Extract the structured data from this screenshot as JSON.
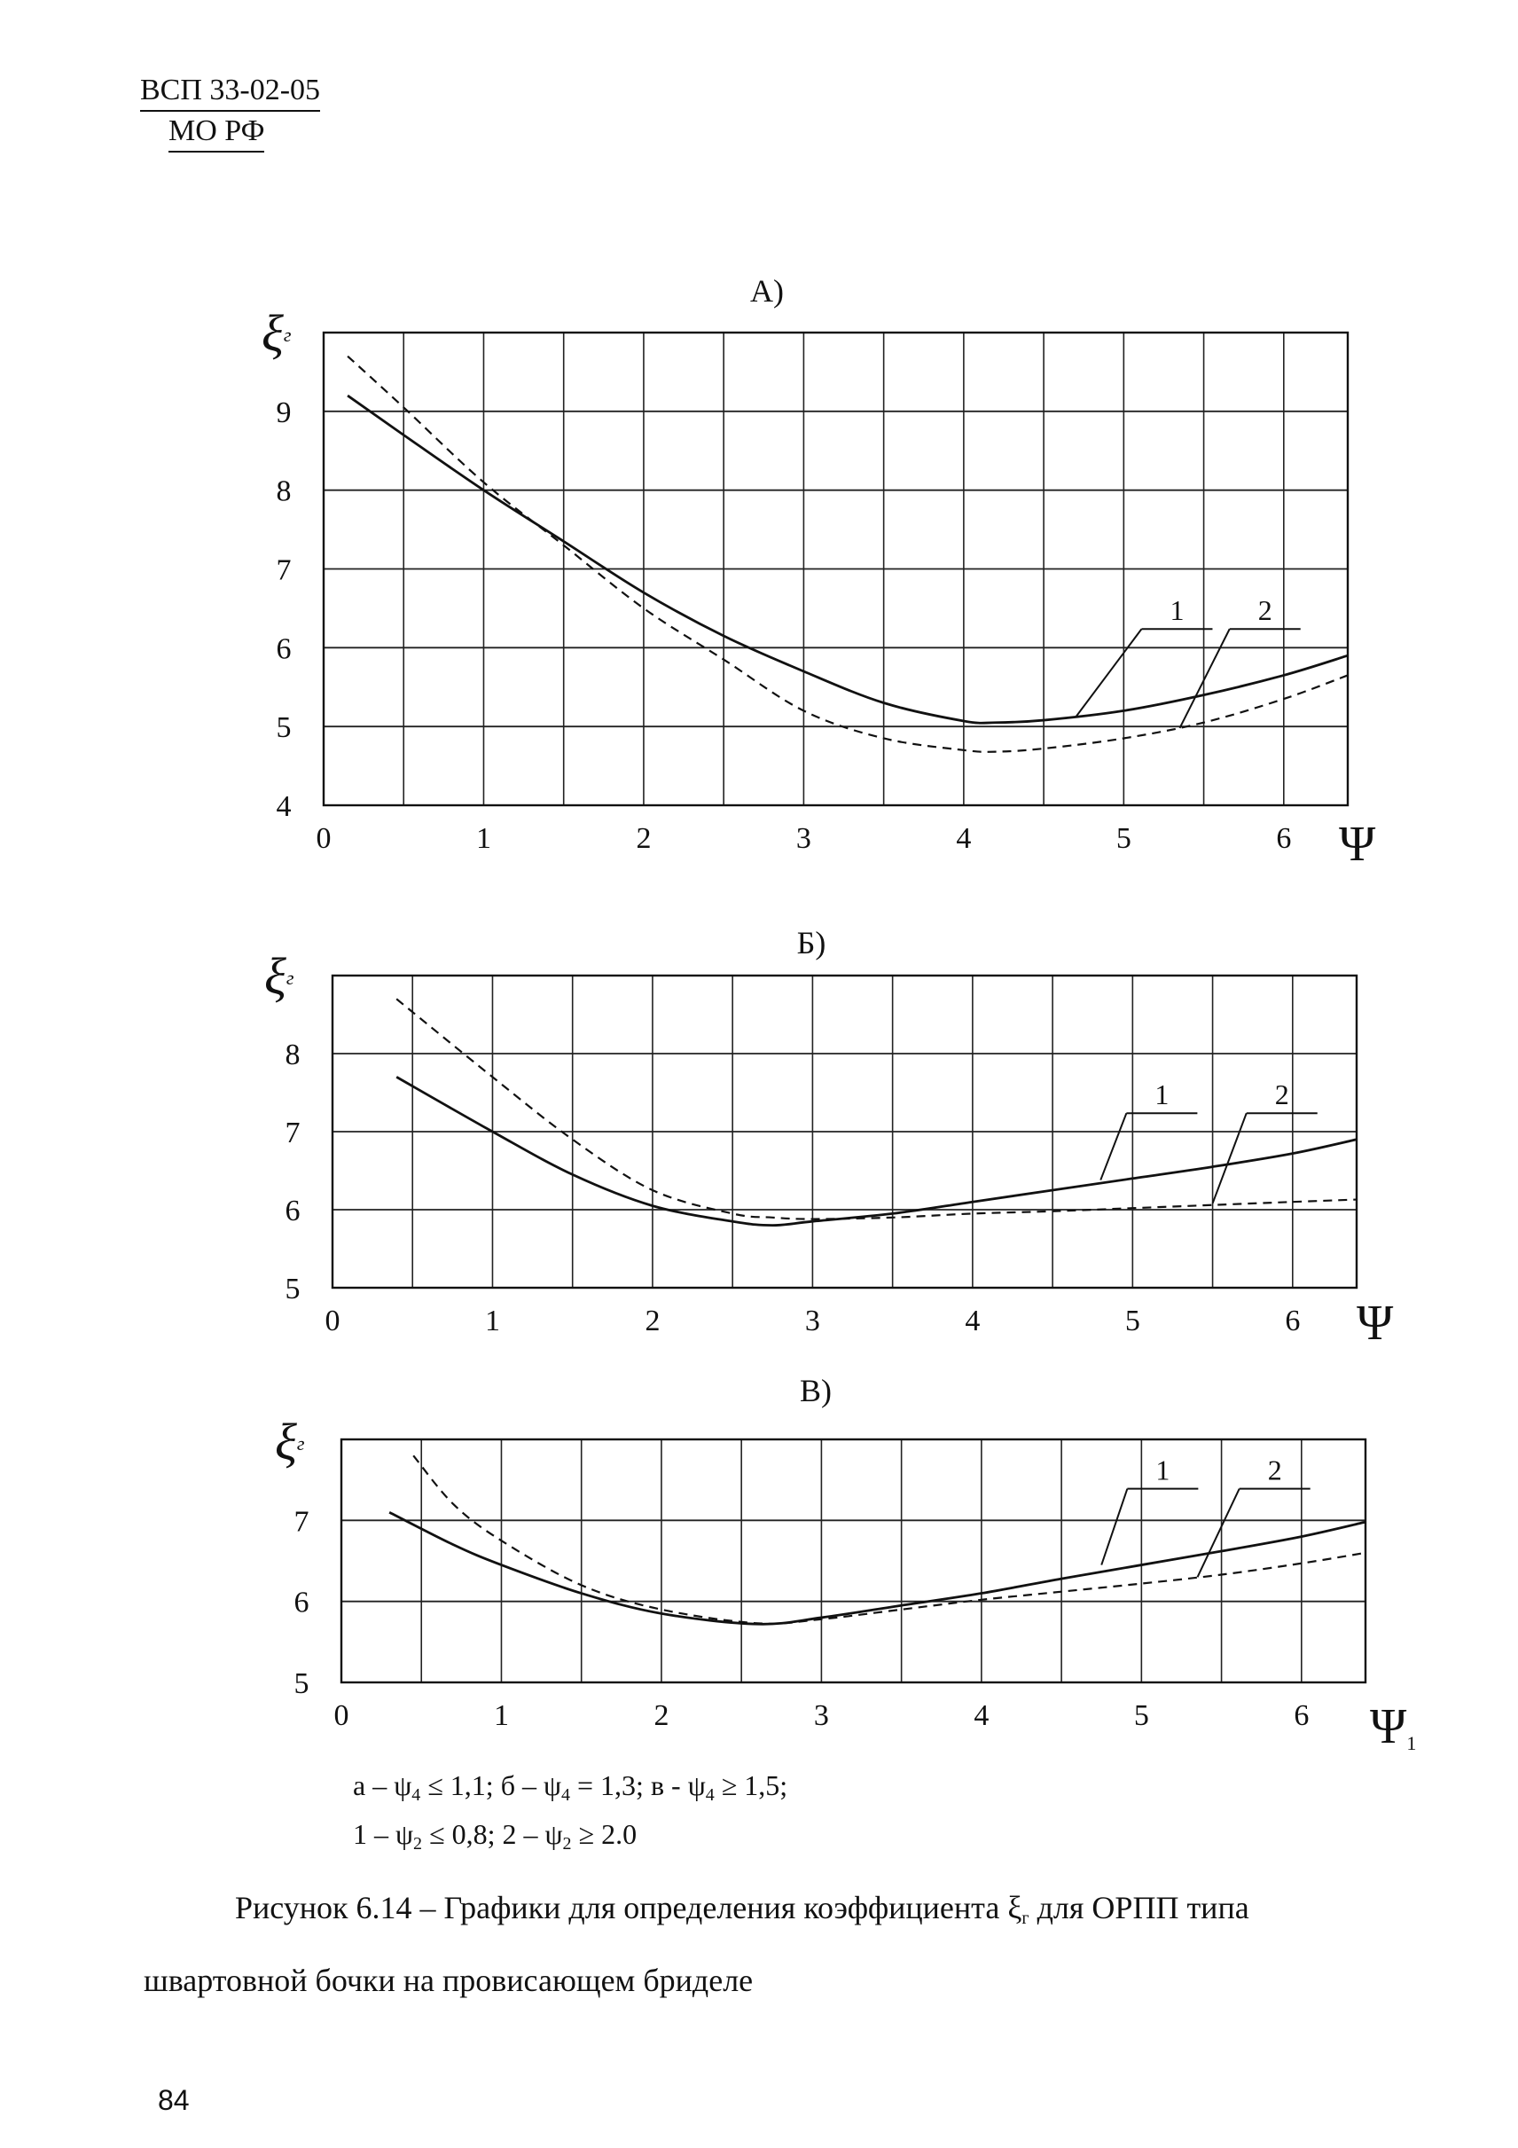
{
  "header": {
    "doc_code": "ВСП 33-02-05",
    "org": "МО РФ"
  },
  "chart_data": [
    {
      "type": "line",
      "title": "А)",
      "ylabel": "ξг",
      "xlabel": "Ψ",
      "xlim": [
        0,
        6.4
      ],
      "ylim": [
        4,
        10
      ],
      "x_ticks": [
        0,
        1,
        2,
        3,
        4,
        5,
        6
      ],
      "y_ticks": [
        4,
        5,
        6,
        7,
        8,
        9
      ],
      "grid": true,
      "series": [
        {
          "name": "1",
          "style": "solid",
          "x": [
            0.15,
            0.5,
            1.0,
            1.5,
            2.0,
            2.5,
            3.0,
            3.5,
            4.0,
            4.2,
            4.5,
            5.0,
            5.5,
            6.0,
            6.4
          ],
          "y": [
            9.2,
            8.7,
            8.0,
            7.35,
            6.7,
            6.15,
            5.7,
            5.3,
            5.07,
            5.05,
            5.08,
            5.2,
            5.4,
            5.65,
            5.9
          ]
        },
        {
          "name": "2",
          "style": "dashed",
          "x": [
            0.15,
            0.5,
            1.0,
            1.5,
            2.0,
            2.5,
            3.0,
            3.5,
            4.0,
            4.2,
            4.5,
            5.0,
            5.5,
            6.0,
            6.4
          ],
          "y": [
            9.7,
            9.05,
            8.1,
            7.3,
            6.5,
            5.85,
            5.2,
            4.85,
            4.7,
            4.68,
            4.72,
            4.85,
            5.05,
            5.35,
            5.65
          ]
        }
      ],
      "annotations": [
        {
          "text": "1",
          "x": 5.25,
          "y": 6.35,
          "target_x": 4.7,
          "target_y": 5.12
        },
        {
          "text": "2",
          "x": 5.8,
          "y": 6.35,
          "target_x": 5.35,
          "target_y": 4.98
        }
      ]
    },
    {
      "type": "line",
      "title": "Б)",
      "ylabel": "ξг",
      "xlabel": "Ψ",
      "xlim": [
        0,
        6.4
      ],
      "ylim": [
        5,
        9
      ],
      "x_ticks": [
        0,
        1,
        2,
        3,
        4,
        5,
        6
      ],
      "y_ticks": [
        5,
        6,
        7,
        8
      ],
      "grid": true,
      "series": [
        {
          "name": "1",
          "style": "solid",
          "x": [
            0.4,
            1.0,
            1.5,
            2.0,
            2.5,
            2.75,
            3.0,
            3.5,
            4.0,
            4.5,
            5.0,
            5.5,
            6.0,
            6.4
          ],
          "y": [
            7.7,
            7.0,
            6.45,
            6.05,
            5.85,
            5.8,
            5.85,
            5.95,
            6.1,
            6.25,
            6.4,
            6.55,
            6.72,
            6.9
          ]
        },
        {
          "name": "2",
          "style": "dashed",
          "x": [
            0.4,
            1.0,
            1.5,
            2.0,
            2.5,
            2.75,
            3.0,
            3.5,
            4.0,
            4.5,
            5.0,
            5.5,
            6.0,
            6.4
          ],
          "y": [
            8.7,
            7.7,
            6.9,
            6.25,
            5.95,
            5.9,
            5.88,
            5.9,
            5.95,
            5.98,
            6.02,
            6.06,
            6.1,
            6.13
          ]
        }
      ],
      "annotations": [
        {
          "text": "1",
          "x": 5.1,
          "y": 7.35,
          "target_x": 4.8,
          "target_y": 6.38
        },
        {
          "text": "2",
          "x": 5.85,
          "y": 7.35,
          "target_x": 5.5,
          "target_y": 6.08
        }
      ]
    },
    {
      "type": "line",
      "title": "В)",
      "ylabel": "ξг",
      "xlabel": "Ψ1",
      "xlim": [
        0,
        6.4
      ],
      "ylim": [
        5,
        8
      ],
      "x_ticks": [
        0,
        1,
        2,
        3,
        4,
        5,
        6
      ],
      "y_ticks": [
        5,
        6,
        7
      ],
      "grid": true,
      "series": [
        {
          "name": "1",
          "style": "solid",
          "x": [
            0.3,
            0.7,
            1.0,
            1.5,
            2.0,
            2.6,
            3.0,
            3.5,
            4.0,
            4.5,
            5.0,
            5.5,
            6.0,
            6.4
          ],
          "y": [
            7.1,
            6.7,
            6.45,
            6.1,
            5.85,
            5.72,
            5.8,
            5.95,
            6.1,
            6.28,
            6.45,
            6.62,
            6.8,
            6.98
          ]
        },
        {
          "name": "2",
          "style": "dashed",
          "x": [
            0.45,
            0.7,
            1.0,
            1.5,
            2.0,
            2.6,
            3.0,
            3.5,
            4.0,
            4.5,
            5.0,
            5.5,
            6.0,
            6.4
          ],
          "y": [
            7.8,
            7.2,
            6.75,
            6.2,
            5.9,
            5.73,
            5.78,
            5.9,
            6.02,
            6.12,
            6.22,
            6.33,
            6.47,
            6.6
          ]
        }
      ],
      "annotations": [
        {
          "text": "1",
          "x": 5.05,
          "y": 7.5,
          "target_x": 4.75,
          "target_y": 6.45
        },
        {
          "text": "2",
          "x": 5.75,
          "y": 7.5,
          "target_x": 5.35,
          "target_y": 6.3
        }
      ]
    }
  ],
  "legend": {
    "line1": {
      "a_prefix": "а – ψ",
      "a_sub": "4",
      "a_rel": " ≤ 1,1;  ",
      "b_prefix": "б – ψ",
      "b_sub": "4",
      "b_rel": " = 1,3;  ",
      "c_prefix": "в - ψ",
      "c_sub": "4",
      "c_rel": " ≥ 1,5;"
    },
    "line2": {
      "one_prefix": "1 – ψ",
      "one_sub": "2",
      "one_rel": " ≤ 0,8;  ",
      "two_prefix": "2 – ψ",
      "two_sub": "2",
      "two_rel": " ≥ 2.0"
    }
  },
  "caption": {
    "before": "Рисунок 6.14 – Графики для определения коэффициента  ξ",
    "sub": "г",
    "after": "  для ОРПП типа",
    "line2": "швартовной бочки на провисающем бриделе"
  },
  "page_number": "84"
}
